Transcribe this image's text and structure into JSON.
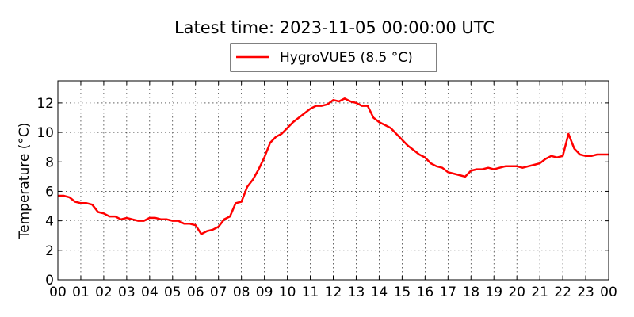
{
  "chart_data": {
    "type": "line",
    "title": "Latest time: 2023-11-05 00:00:00 UTC",
    "xlabel": "",
    "ylabel": "Temperature (°C)",
    "xlim": [
      0,
      24
    ],
    "ylim": [
      0,
      13.5
    ],
    "x_ticks": [
      0,
      1,
      2,
      3,
      4,
      5,
      6,
      7,
      8,
      9,
      10,
      11,
      12,
      13,
      14,
      15,
      16,
      17,
      18,
      19,
      20,
      21,
      22,
      23,
      24
    ],
    "x_tick_labels": [
      "00",
      "01",
      "02",
      "03",
      "04",
      "05",
      "06",
      "07",
      "08",
      "09",
      "10",
      "11",
      "12",
      "13",
      "14",
      "15",
      "16",
      "17",
      "18",
      "19",
      "20",
      "21",
      "22",
      "23",
      "00"
    ],
    "y_ticks": [
      0,
      2,
      4,
      6,
      8,
      10,
      12
    ],
    "y_tick_labels": [
      "0",
      "2",
      "4",
      "6",
      "8",
      "10",
      "12"
    ],
    "grid": true,
    "legend_position": "top-center",
    "series": [
      {
        "name": "HygroVUE5 (8.5 °C)",
        "color": "#ff0000",
        "x": [
          0,
          0.25,
          0.5,
          0.75,
          1,
          1.25,
          1.5,
          1.75,
          2,
          2.25,
          2.5,
          2.75,
          3,
          3.25,
          3.5,
          3.75,
          4,
          4.25,
          4.5,
          4.75,
          5,
          5.25,
          5.5,
          5.75,
          6,
          6.25,
          6.5,
          6.75,
          7,
          7.25,
          7.5,
          7.75,
          8,
          8.25,
          8.5,
          8.75,
          9,
          9.25,
          9.5,
          9.75,
          10,
          10.25,
          10.5,
          10.75,
          11,
          11.25,
          11.5,
          11.75,
          12,
          12.25,
          12.5,
          12.75,
          13,
          13.25,
          13.5,
          13.75,
          14,
          14.25,
          14.5,
          14.75,
          15,
          15.25,
          15.5,
          15.75,
          16,
          16.25,
          16.5,
          16.75,
          17,
          17.25,
          17.5,
          17.75,
          18,
          18.25,
          18.5,
          18.75,
          19,
          19.25,
          19.5,
          19.75,
          20,
          20.25,
          20.5,
          20.75,
          21,
          21.25,
          21.5,
          21.75,
          22,
          22.25,
          22.5,
          22.75,
          23,
          23.25,
          23.5,
          23.75,
          24
        ],
        "values": [
          5.7,
          5.7,
          5.6,
          5.3,
          5.2,
          5.2,
          5.1,
          4.6,
          4.5,
          4.3,
          4.3,
          4.1,
          4.2,
          4.1,
          4.0,
          4.0,
          4.2,
          4.2,
          4.1,
          4.1,
          4.0,
          4.0,
          3.8,
          3.8,
          3.7,
          3.1,
          3.3,
          3.4,
          3.6,
          4.1,
          4.3,
          5.2,
          5.3,
          6.3,
          6.8,
          7.5,
          8.3,
          9.3,
          9.7,
          9.9,
          10.3,
          10.7,
          11.0,
          11.3,
          11.6,
          11.8,
          11.8,
          11.9,
          12.2,
          12.1,
          12.3,
          12.1,
          12.0,
          11.8,
          11.8,
          11.0,
          10.7,
          10.5,
          10.3,
          9.9,
          9.5,
          9.1,
          8.8,
          8.5,
          8.3,
          7.9,
          7.7,
          7.6,
          7.3,
          7.2,
          7.1,
          7.0,
          7.4,
          7.5,
          7.5,
          7.6,
          7.5,
          7.6,
          7.7,
          7.7,
          7.7,
          7.6,
          7.7,
          7.8,
          7.9,
          8.2,
          8.4,
          8.3,
          8.4,
          9.9,
          8.9,
          8.5,
          8.4,
          8.4,
          8.5,
          8.5,
          8.5
        ]
      }
    ]
  }
}
